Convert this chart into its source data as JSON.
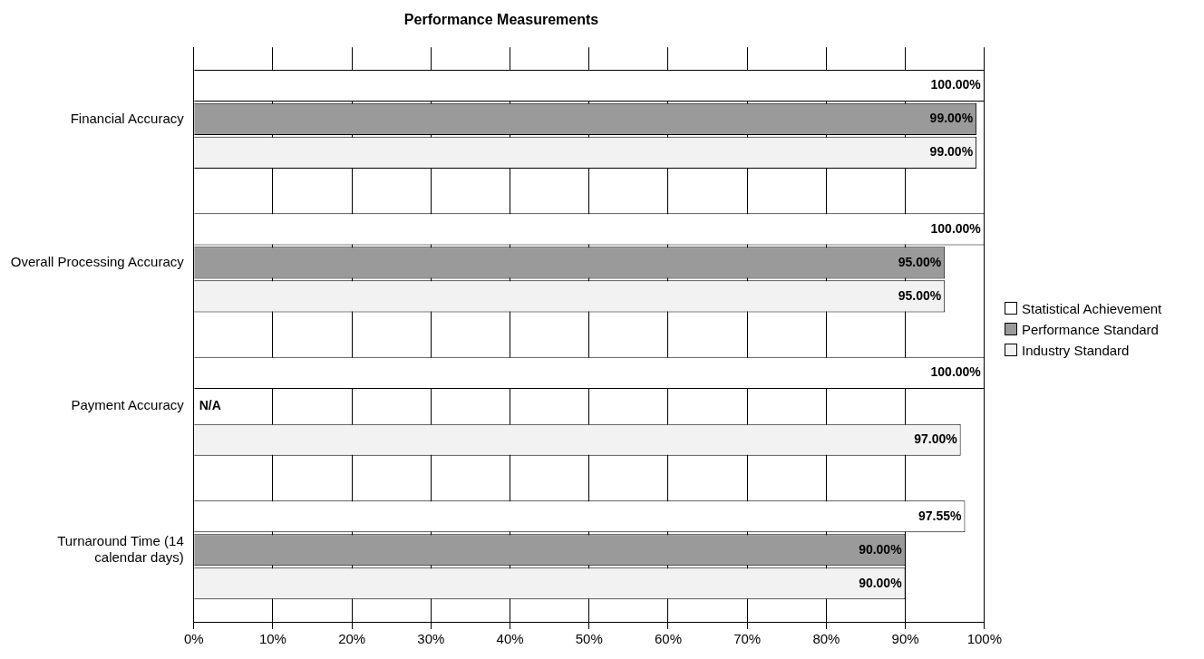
{
  "chart_data": {
    "type": "bar",
    "orientation": "horizontal",
    "title": "Performance Measurements",
    "categories": [
      "Financial Accuracy",
      "Overall Processing Accuracy",
      "Payment Accuracy",
      "Turnaround Time (14 calendar days)"
    ],
    "series": [
      {
        "name": "Statistical Achievement",
        "color": "#ffffff",
        "values": [
          100,
          100,
          100,
          97.55
        ],
        "value_labels": [
          "100.00%",
          "100.00%",
          "100.00%",
          "97.55%"
        ]
      },
      {
        "name": "Performance Standard",
        "color": "#9a9a9a",
        "values": [
          99,
          95,
          null,
          90
        ],
        "value_labels": [
          "99.00%",
          "95.00%",
          "N/A",
          "90.00%"
        ]
      },
      {
        "name": "Industry Standard",
        "color": "#f2f2f2",
        "values": [
          99,
          95,
          97,
          90
        ],
        "value_labels": [
          "99.00%",
          "95.00%",
          "97.00%",
          "90.00%"
        ]
      }
    ],
    "xlim": [
      0,
      100
    ],
    "xticks": [
      {
        "value": 0,
        "label": "0%"
      },
      {
        "value": 10,
        "label": "10%"
      },
      {
        "value": 20,
        "label": "20%"
      },
      {
        "value": 30,
        "label": "30%"
      },
      {
        "value": 40,
        "label": "40%"
      },
      {
        "value": 50,
        "label": "50%"
      },
      {
        "value": 60,
        "label": "60%"
      },
      {
        "value": 70,
        "label": "70%"
      },
      {
        "value": 80,
        "label": "80%"
      },
      {
        "value": 90,
        "label": "90%"
      },
      {
        "value": 100,
        "label": "100%"
      }
    ],
    "grid": "x",
    "legend": "right"
  }
}
